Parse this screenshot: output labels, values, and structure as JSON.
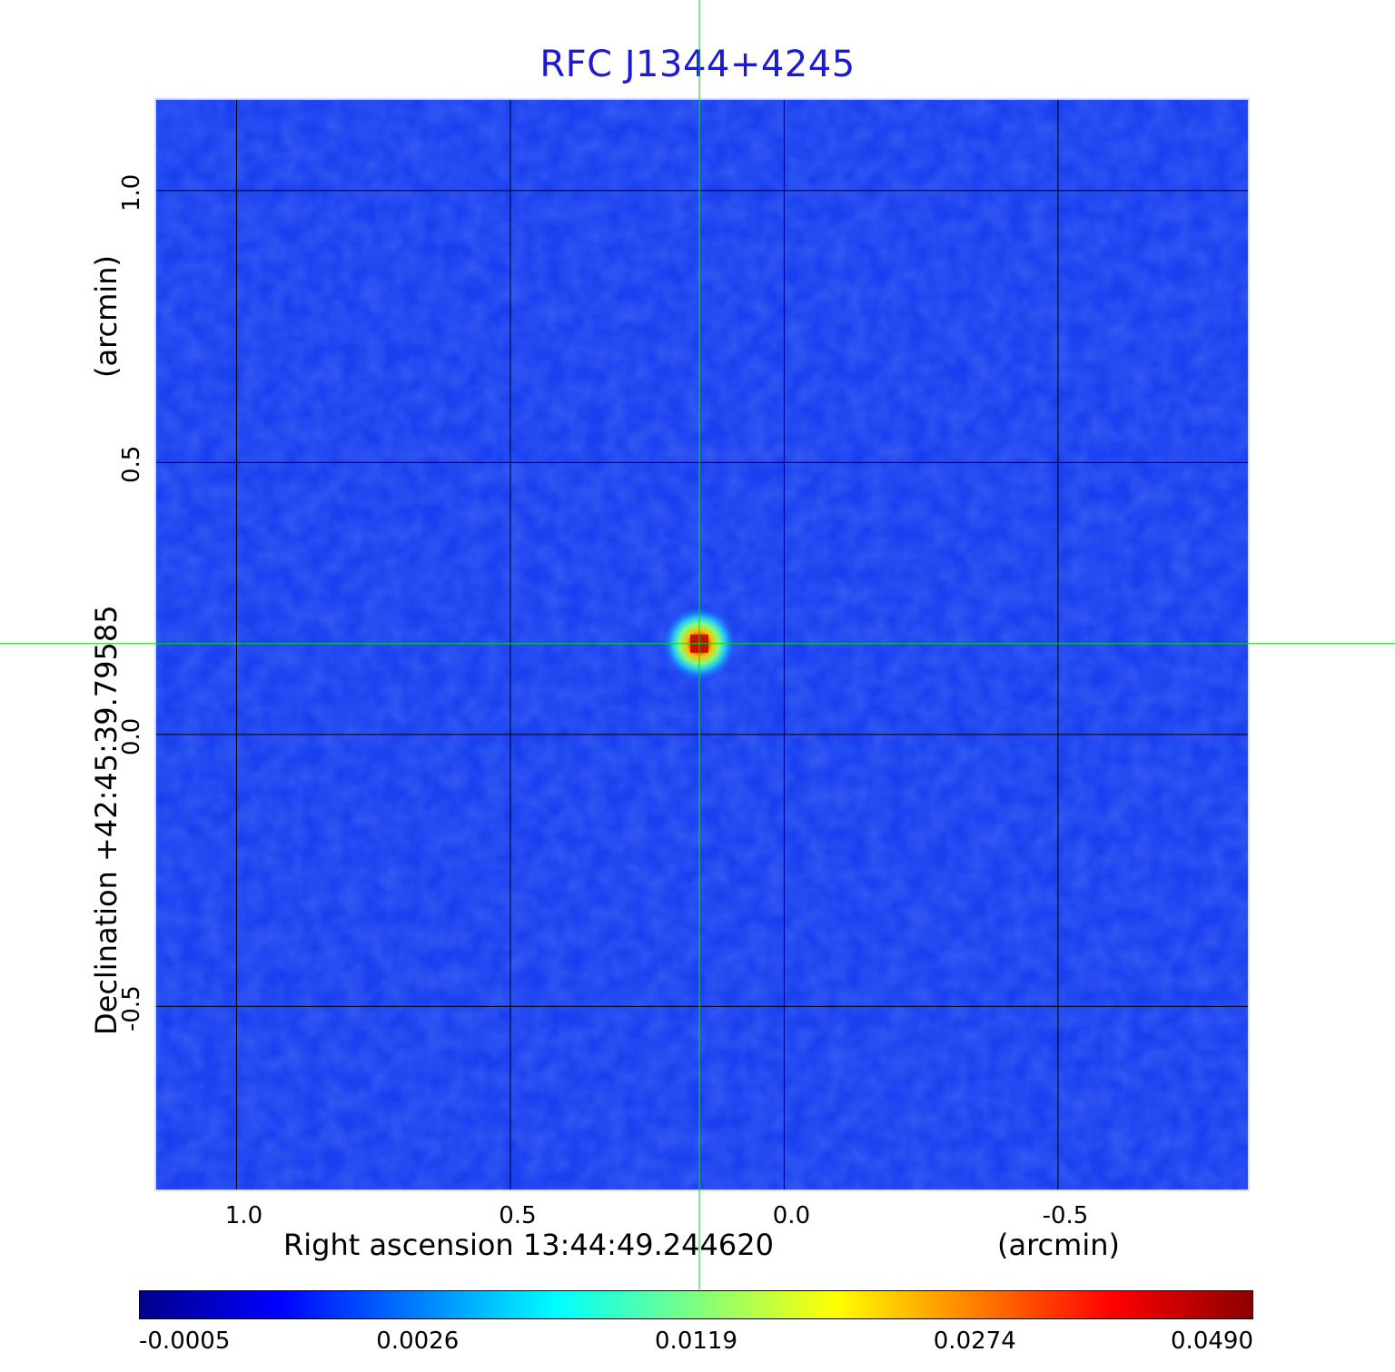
{
  "chart_data": {
    "type": "heatmap",
    "title": "RFC J1344+4245",
    "xlabel": "Right ascension  13:44:49.244620",
    "xunit": "(arcmin)",
    "ylabel": "Declination  +42:45:39.79585",
    "yunit": "(arcmin)",
    "x_ticks": [
      "1.0",
      "0.5",
      "0.0",
      "-0.5"
    ],
    "x_tick_values": [
      1.0,
      0.5,
      0.0,
      -0.5
    ],
    "y_ticks": [
      "1.0",
      "0.5",
      "0.0",
      "-0.5"
    ],
    "y_tick_values": [
      1.0,
      0.5,
      0.0,
      -0.5
    ],
    "xlim": [
      1.15,
      -0.85
    ],
    "ylim": [
      -0.84,
      1.17
    ],
    "x_direction": "decreasing to the right",
    "grid": true,
    "grid_color": "#000000",
    "crosshair": {
      "x": 0.155,
      "y": 0.167,
      "color": "#00e000"
    },
    "source_peak": {
      "x": 0.155,
      "y": 0.167,
      "value": 0.049
    },
    "colorbar": {
      "colormap": "jet",
      "ticks": [
        "-0.0005",
        "0.0026",
        "0.0119",
        "0.0274",
        "0.0490"
      ],
      "tick_values": [
        -0.0005,
        0.0026,
        0.0119,
        0.0274,
        0.049
      ],
      "stops": [
        "#00008b",
        "#0000ff",
        "#007fff",
        "#00ffff",
        "#7fff7f",
        "#ffff00",
        "#ff7f00",
        "#ff0000",
        "#8b0000"
      ]
    },
    "background_color": "#1a3ff0"
  }
}
